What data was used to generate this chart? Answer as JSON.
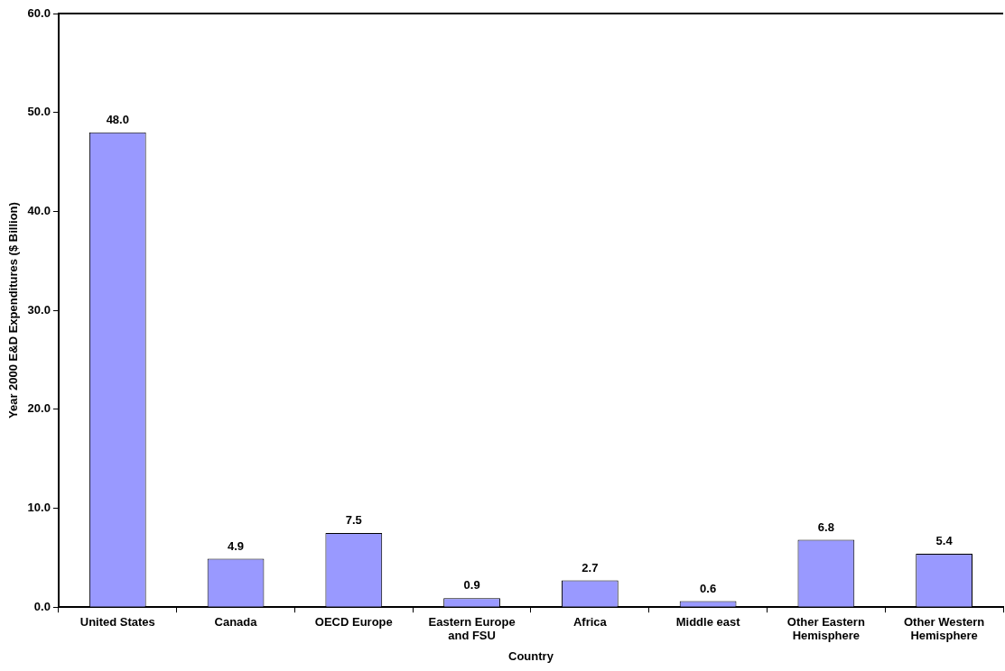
{
  "chart_data": {
    "type": "bar",
    "xlabel": "Country",
    "ylabel": "Year 2000 E&D Expenditures ($ Billion)",
    "categories": [
      "United States",
      "Canada",
      "OECD Europe",
      "Eastern Europe and FSU",
      "Africa",
      "Middle east",
      "Other Eastern Hemisphere",
      "Other Western Hemisphere"
    ],
    "values": [
      48.0,
      4.9,
      7.5,
      0.9,
      2.7,
      0.6,
      6.8,
      5.4
    ],
    "value_labels": [
      "48.0",
      "4.9",
      "7.5",
      "0.9",
      "2.7",
      "0.6",
      "6.8",
      "5.4"
    ],
    "color": "#9999ff",
    "ylim": [
      0,
      60
    ],
    "yticks": [
      {
        "value": 0,
        "label": "0.0"
      },
      {
        "value": 10,
        "label": "10.0"
      },
      {
        "value": 20,
        "label": "20.0"
      },
      {
        "value": 30,
        "label": "30.0"
      },
      {
        "value": 40,
        "label": "40.0"
      },
      {
        "value": 50,
        "label": "50.0"
      },
      {
        "value": 60,
        "label": "60.0"
      }
    ],
    "grid": false,
    "legend": false
  }
}
